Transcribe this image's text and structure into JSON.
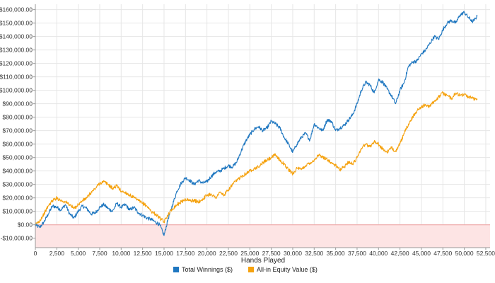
{
  "chart_data": {
    "type": "line",
    "title": "",
    "xlabel": "Hands Played",
    "ylabel": "",
    "xlim": [
      0,
      53000
    ],
    "ylim": [
      -17000,
      164000
    ],
    "x_ticks": [
      0,
      2500,
      5000,
      7500,
      10000,
      12500,
      15000,
      17500,
      20000,
      22500,
      25000,
      27500,
      30000,
      32500,
      35000,
      37500,
      40000,
      42500,
      45000,
      47500,
      50000,
      52500
    ],
    "x_tick_labels": [
      "0",
      "2,500",
      "5,000",
      "7,500",
      "10,000",
      "12,500",
      "15,000",
      "17,500",
      "20,000",
      "22,500",
      "25,000",
      "27,500",
      "30,000",
      "32,500",
      "35,000",
      "37,500",
      "40,000",
      "42,500",
      "45,000",
      "47,500",
      "50,000",
      "52,500"
    ],
    "y_ticks": [
      -10000,
      0,
      10000,
      20000,
      30000,
      40000,
      50000,
      60000,
      70000,
      80000,
      90000,
      100000,
      110000,
      120000,
      130000,
      140000,
      150000,
      160000
    ],
    "y_tick_labels": [
      "-$10,000.00",
      "$0.00",
      "$10,000.00",
      "$20,000.00",
      "$30,000.00",
      "$40,000.00",
      "$50,000.00",
      "$60,000.00",
      "$70,000.00",
      "$80,000.00",
      "$90,000.00",
      "$100,000.00",
      "$110,000.00",
      "$120,000.00",
      "$130,000.00",
      "$140,000.00",
      "$150,000.00",
      "$160,000.00"
    ],
    "grid": true,
    "legend_position": "bottom-center",
    "negative_region_color": "#fde4e4",
    "zero_line_color": "#f0a0a0",
    "series": [
      {
        "name": "Total Winnings ($)",
        "color": "#1f77c0",
        "x": [
          0,
          500,
          1000,
          1500,
          2000,
          2500,
          3000,
          3500,
          4000,
          4500,
          5000,
          5500,
          6000,
          6500,
          7000,
          7500,
          8000,
          8500,
          9000,
          9500,
          10000,
          10500,
          11000,
          11500,
          12000,
          12500,
          13000,
          13500,
          14000,
          14500,
          15000,
          15500,
          16000,
          16500,
          17000,
          17500,
          18000,
          18500,
          19000,
          19500,
          20000,
          20500,
          21000,
          21500,
          22000,
          22500,
          23000,
          23500,
          24000,
          24500,
          25000,
          25500,
          26000,
          26500,
          27000,
          27500,
          28000,
          28500,
          29000,
          29500,
          30000,
          30500,
          31000,
          31500,
          32000,
          32500,
          33000,
          33500,
          34000,
          34500,
          35000,
          35500,
          36000,
          36500,
          37000,
          37500,
          38000,
          38500,
          39000,
          39500,
          40000,
          40500,
          41000,
          41500,
          42000,
          42500,
          43000,
          43500,
          44000,
          44500,
          45000,
          45500,
          46000,
          46500,
          47000,
          47500,
          48000,
          48500,
          49000,
          49500,
          50000,
          50500,
          51000,
          51500
        ],
        "y": [
          0,
          -2000,
          2000,
          8000,
          14000,
          13000,
          11000,
          15000,
          8000,
          5000,
          10000,
          14000,
          12000,
          8000,
          9000,
          13000,
          15000,
          12000,
          10000,
          16000,
          13000,
          15000,
          11000,
          13000,
          9000,
          7000,
          5000,
          4000,
          2000,
          0,
          -8000,
          5000,
          15000,
          25000,
          31000,
          35000,
          33000,
          30000,
          33000,
          31000,
          32000,
          36000,
          39000,
          40000,
          42000,
          44000,
          43000,
          47000,
          55000,
          62000,
          67000,
          71000,
          73000,
          70000,
          72000,
          77000,
          75000,
          72000,
          65000,
          60000,
          54000,
          60000,
          65000,
          68000,
          63000,
          75000,
          72000,
          70000,
          78000,
          77000,
          70000,
          72000,
          74000,
          78000,
          82000,
          90000,
          100000,
          106000,
          104000,
          98000,
          108000,
          106000,
          101000,
          96000,
          90000,
          100000,
          106000,
          118000,
          121000,
          122000,
          127000,
          130000,
          135000,
          140000,
          138000,
          145000,
          150000,
          152000,
          150000,
          156000,
          158000,
          154000,
          151000,
          155000
        ]
      },
      {
        "name": "All-in Equity Value ($)",
        "color": "#f5a20f",
        "x": [
          0,
          500,
          1000,
          1500,
          2000,
          2500,
          3000,
          3500,
          4000,
          4500,
          5000,
          5500,
          6000,
          6500,
          7000,
          7500,
          8000,
          8500,
          9000,
          9500,
          10000,
          10500,
          11000,
          11500,
          12000,
          12500,
          13000,
          13500,
          14000,
          14500,
          15000,
          15500,
          16000,
          16500,
          17000,
          17500,
          18000,
          18500,
          19000,
          19500,
          20000,
          20500,
          21000,
          21500,
          22000,
          22500,
          23000,
          23500,
          24000,
          24500,
          25000,
          25500,
          26000,
          26500,
          27000,
          27500,
          28000,
          28500,
          29000,
          29500,
          30000,
          30500,
          31000,
          31500,
          32000,
          32500,
          33000,
          33500,
          34000,
          34500,
          35000,
          35500,
          36000,
          36500,
          37000,
          37500,
          38000,
          38500,
          39000,
          39500,
          40000,
          40500,
          41000,
          41500,
          42000,
          42500,
          43000,
          43500,
          44000,
          44500,
          45000,
          45500,
          46000,
          46500,
          47000,
          47500,
          48000,
          48500,
          49000,
          49500,
          50000,
          50500,
          51000,
          51500
        ],
        "y": [
          0,
          3000,
          8000,
          14000,
          18000,
          20000,
          18000,
          17000,
          15000,
          12000,
          15000,
          18000,
          20000,
          24000,
          27000,
          31000,
          32000,
          30000,
          27000,
          29000,
          25000,
          24000,
          22000,
          20000,
          18000,
          16000,
          14000,
          10000,
          8000,
          5000,
          2000,
          8000,
          12000,
          15000,
          17000,
          19000,
          18000,
          18000,
          17000,
          19000,
          22000,
          23000,
          20000,
          24000,
          22000,
          26000,
          30000,
          33000,
          36000,
          38000,
          40000,
          42000,
          43000,
          46000,
          48000,
          50000,
          52000,
          48000,
          45000,
          41000,
          38000,
          42000,
          41000,
          44000,
          46000,
          48000,
          52000,
          50000,
          49000,
          46000,
          44000,
          41000,
          43000,
          47000,
          45000,
          50000,
          57000,
          60000,
          58000,
          62000,
          60000,
          56000,
          54000,
          57000,
          55000,
          60000,
          68000,
          75000,
          80000,
          85000,
          88000,
          89000,
          88000,
          92000,
          95000,
          98000,
          96000,
          94000,
          98000,
          96000,
          97000,
          95000,
          94000,
          93000
        ]
      }
    ]
  }
}
